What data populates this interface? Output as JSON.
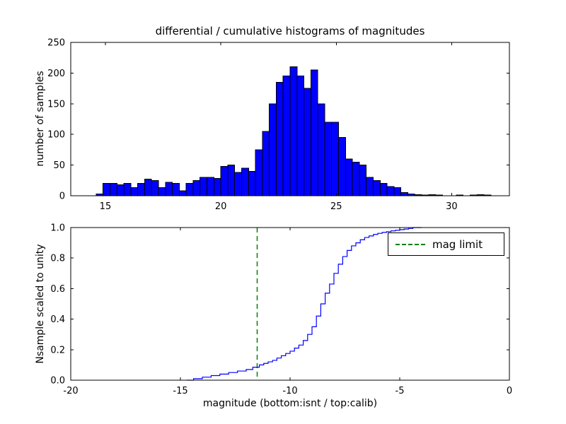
{
  "figure": {
    "background": "#ffffff",
    "frame_color": "#000000"
  },
  "chart_data": [
    {
      "type": "bar",
      "title": "differential / cumulative histograms of magnitudes",
      "ylabel": "number of samples",
      "xlabel": "",
      "xlim": [
        13.5,
        32.5
      ],
      "ylim": [
        0,
        250
      ],
      "xticks": {
        "values": [
          15,
          20,
          25,
          30
        ],
        "labels": [
          "15",
          "20",
          "25",
          "30"
        ]
      },
      "yticks": {
        "values": [
          0,
          50,
          100,
          150,
          200,
          250
        ],
        "labels": [
          "0",
          "50",
          "100",
          "150",
          "200",
          "250"
        ]
      },
      "bar_color": "#0000ff",
      "bar_edge_color": "#000000",
      "bin_start": 14.6,
      "bin_width": 0.3,
      "counts": [
        3,
        20,
        20,
        18,
        20,
        13,
        20,
        27,
        25,
        13,
        22,
        20,
        8,
        20,
        25,
        30,
        30,
        28,
        48,
        50,
        38,
        45,
        40,
        75,
        105,
        150,
        185,
        195,
        210,
        195,
        175,
        205,
        150,
        120,
        120,
        95,
        60,
        55,
        50,
        30,
        25,
        20,
        15,
        13,
        5,
        3,
        2,
        1,
        2,
        1,
        0,
        0,
        1,
        0,
        1,
        2,
        1
      ],
      "grid": false
    },
    {
      "type": "line",
      "step": true,
      "title": "",
      "ylabel": "Nsample scaled to unity",
      "xlabel": "magnitude (bottom:isnt / top:calib)",
      "xlim": [
        -20,
        0
      ],
      "ylim": [
        0,
        1.0
      ],
      "xticks": {
        "values": [
          -20,
          -15,
          -10,
          -5,
          0
        ],
        "labels": [
          "-20",
          "-15",
          "-10",
          "-5",
          "0"
        ]
      },
      "yticks": {
        "values": [
          0,
          0.2,
          0.4,
          0.6,
          0.8,
          1.0
        ],
        "labels": [
          "0.0",
          "0.2",
          "0.4",
          "0.6",
          "0.8",
          "1.0"
        ]
      },
      "line_color": "#0000ff",
      "points": [
        [
          -14.7,
          0.0
        ],
        [
          -14.4,
          0.01
        ],
        [
          -14.0,
          0.02
        ],
        [
          -13.6,
          0.03
        ],
        [
          -13.2,
          0.04
        ],
        [
          -12.8,
          0.05
        ],
        [
          -12.4,
          0.06
        ],
        [
          -12.0,
          0.07
        ],
        [
          -11.7,
          0.085
        ],
        [
          -11.4,
          0.1
        ],
        [
          -11.2,
          0.11
        ],
        [
          -11.0,
          0.12
        ],
        [
          -10.8,
          0.13
        ],
        [
          -10.6,
          0.145
        ],
        [
          -10.4,
          0.16
        ],
        [
          -10.2,
          0.175
        ],
        [
          -10.0,
          0.19
        ],
        [
          -9.8,
          0.21
        ],
        [
          -9.6,
          0.23
        ],
        [
          -9.4,
          0.26
        ],
        [
          -9.2,
          0.3
        ],
        [
          -9.0,
          0.35
        ],
        [
          -8.8,
          0.42
        ],
        [
          -8.6,
          0.5
        ],
        [
          -8.4,
          0.57
        ],
        [
          -8.2,
          0.63
        ],
        [
          -8.0,
          0.7
        ],
        [
          -7.8,
          0.76
        ],
        [
          -7.6,
          0.81
        ],
        [
          -7.4,
          0.85
        ],
        [
          -7.2,
          0.88
        ],
        [
          -7.0,
          0.9
        ],
        [
          -6.8,
          0.92
        ],
        [
          -6.6,
          0.935
        ],
        [
          -6.4,
          0.945
        ],
        [
          -6.2,
          0.955
        ],
        [
          -6.0,
          0.962
        ],
        [
          -5.8,
          0.968
        ],
        [
          -5.6,
          0.973
        ],
        [
          -5.4,
          0.978
        ],
        [
          -5.2,
          0.982
        ],
        [
          -5.0,
          0.986
        ],
        [
          -4.8,
          0.99
        ],
        [
          -4.6,
          0.994
        ],
        [
          -4.4,
          1.0
        ],
        [
          -4.0,
          1.0
        ]
      ],
      "vline": {
        "x": -11.5,
        "color": "#008000",
        "style": "dashed",
        "label": "mag limit"
      },
      "legend": {
        "position": "upper right",
        "entries": [
          "mag limit"
        ]
      },
      "grid": false
    }
  ]
}
